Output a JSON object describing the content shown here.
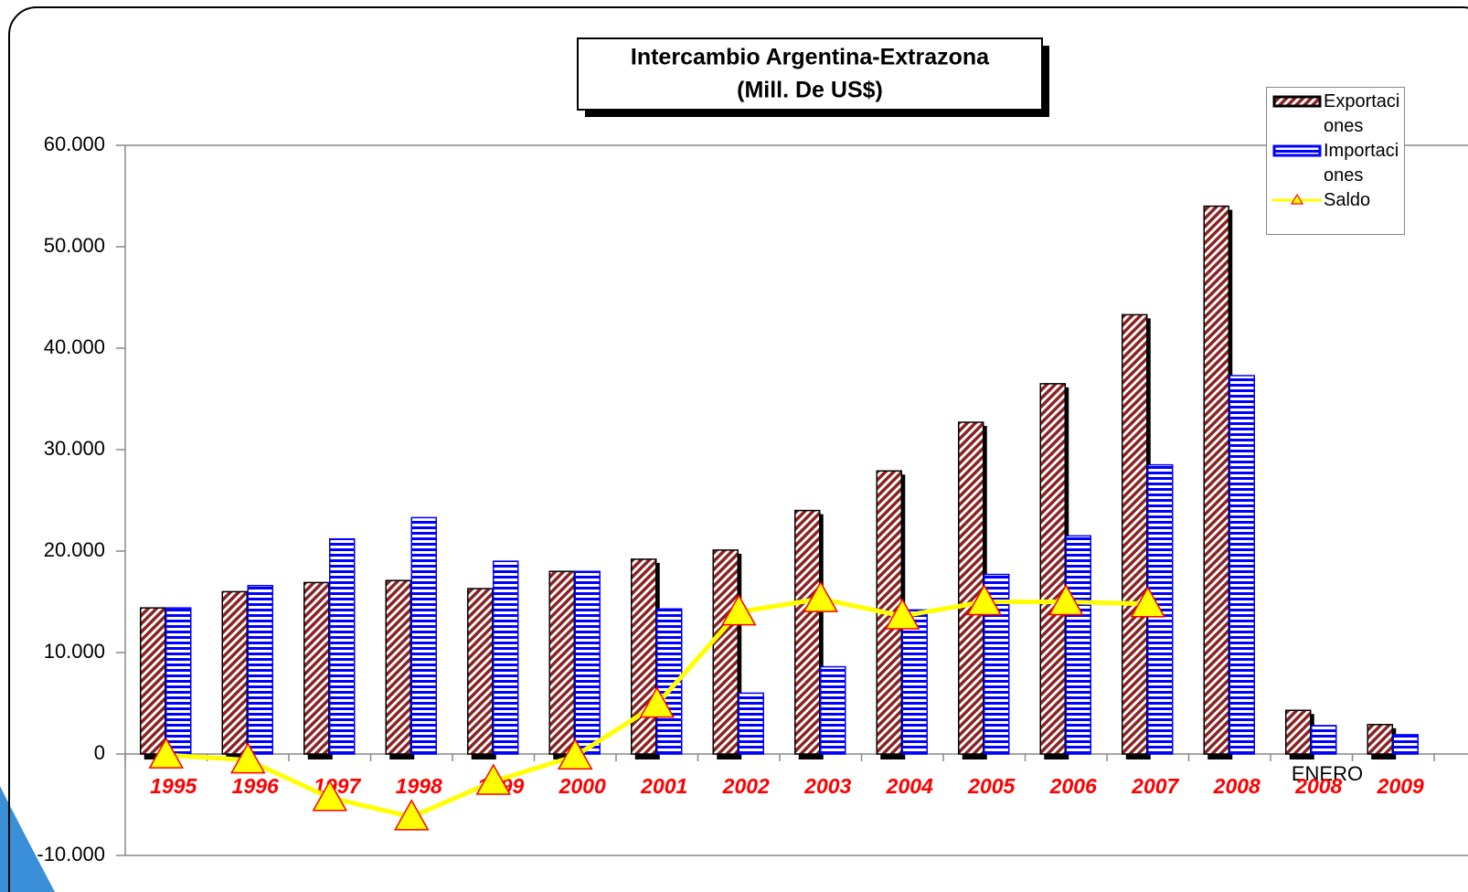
{
  "chart_data": {
    "type": "bar",
    "title": "Intercambio Argentina-Extrazona",
    "subtitle": "(Mill. De US$)",
    "annotation": "ENERO",
    "categories": [
      "1995",
      "1996",
      "1997",
      "1998",
      "1999",
      "2000",
      "2001",
      "2002",
      "2003",
      "2004",
      "2005",
      "2006",
      "2007",
      "2008",
      "2008",
      "2009"
    ],
    "series": [
      {
        "name": "Exportaciones",
        "color": "#8b2323",
        "values": [
          14400,
          16000,
          16900,
          17100,
          16300,
          18000,
          19200,
          20100,
          24000,
          27900,
          32700,
          36500,
          43300,
          54000,
          4300,
          2900
        ]
      },
      {
        "name": "Importaciones",
        "color": "#0000ff",
        "values": [
          14400,
          16600,
          21200,
          23300,
          19000,
          18000,
          14300,
          6000,
          8600,
          14200,
          17700,
          21500,
          28500,
          37300,
          2800,
          1900
        ]
      },
      {
        "name": "Saldo",
        "color": "#ffff00",
        "type": "line",
        "values": [
          -100,
          -600,
          -4300,
          -6200,
          -2700,
          -200,
          4900,
          14000,
          15300,
          13600,
          15000,
          15000,
          14800,
          null,
          null,
          null
        ]
      }
    ],
    "ylim": [
      -10000,
      60000
    ],
    "yticks": [
      {
        "value": -10000,
        "label": "-10.000"
      },
      0,
      {
        "value": 10000,
        "label": "10.000"
      },
      {
        "value": 20000,
        "label": "20.000"
      },
      {
        "value": 30000,
        "label": "30.000"
      },
      {
        "value": 40000,
        "label": "40.000"
      },
      {
        "value": 50000,
        "label": "50.000"
      },
      {
        "value": 60000,
        "label": "60.000"
      }
    ],
    "legend": "top-right"
  }
}
